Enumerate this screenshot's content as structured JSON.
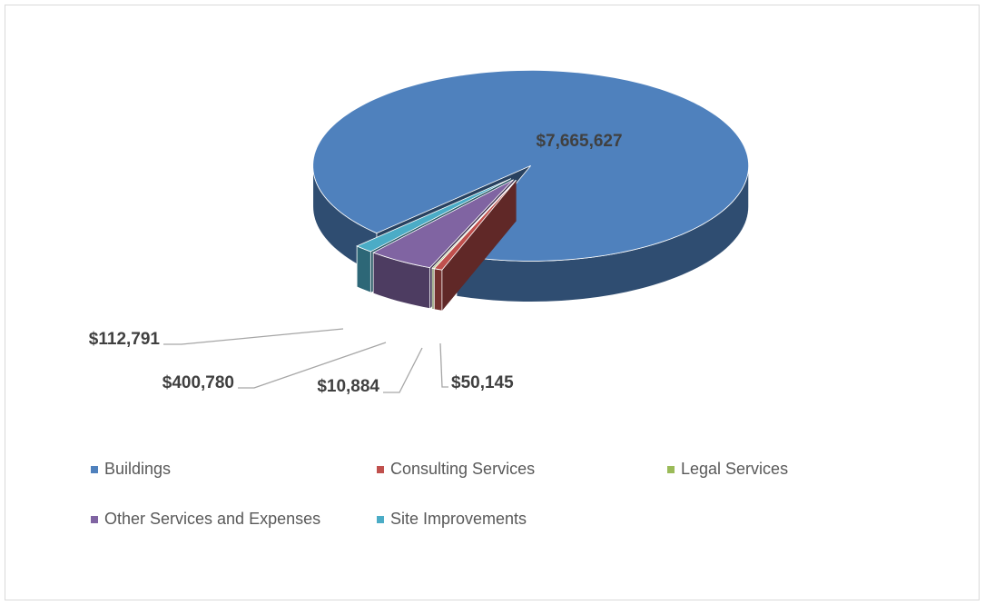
{
  "chart_data": {
    "type": "pie",
    "categories": [
      "Buildings",
      "Consulting Services",
      "Legal Services",
      "Other Services and Expenses",
      "Site Improvements"
    ],
    "values": [
      7665627,
      50145,
      10884,
      400780,
      112791
    ],
    "value_labels": [
      "$7,665,627",
      "$50,145",
      "$10,884",
      "$400,780",
      "$112,791"
    ],
    "colors": [
      "#4f81bd",
      "#c0504d",
      "#9bbb59",
      "#8064a2",
      "#4bacc6"
    ],
    "legend": "bottom"
  }
}
